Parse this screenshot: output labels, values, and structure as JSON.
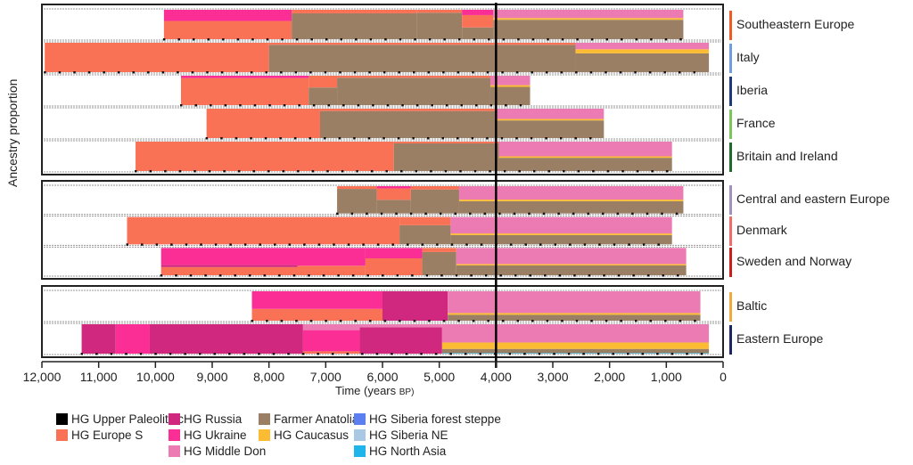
{
  "chart_data": {
    "type": "area",
    "title": "",
    "xlabel": "Time (years",
    "xlabel_suffix": "BP)",
    "ylabel": "Ancestry proportion",
    "xlim": [
      12000,
      0
    ],
    "ylim": [
      0,
      1
    ],
    "xticks": [
      12000,
      11000,
      10000,
      9000,
      8000,
      7000,
      6000,
      5000,
      4000,
      3000,
      2000,
      1000,
      0
    ],
    "xtick_labels": [
      "12,000",
      "11,000",
      "10,000",
      "9,000",
      "8,000",
      "7,000",
      "6,000",
      "5,000",
      "4,000",
      "3,000",
      "2,000",
      "1,000",
      "0"
    ],
    "reference_line": 4000,
    "components": [
      {
        "key": "hg_upper_paleolithic",
        "name": "HG Upper Paleolithic",
        "color": "#000000"
      },
      {
        "key": "hg_europe_s",
        "name": "HG Europe S",
        "color": "#f97256"
      },
      {
        "key": "hg_russia",
        "name": "HG Russia",
        "color": "#d1287f"
      },
      {
        "key": "hg_ukraine",
        "name": "HG Ukraine",
        "color": "#fb2e96"
      },
      {
        "key": "hg_middle_don",
        "name": "HG Middle Don",
        "color": "#ec7bb3"
      },
      {
        "key": "farmer_anatolia",
        "name": "Farmer Anatolia",
        "color": "#9a7f64"
      },
      {
        "key": "hg_caucasus",
        "name": "HG Caucasus",
        "color": "#fbbb33"
      },
      {
        "key": "hg_siberia_forest_steppe",
        "name": "HG Siberia forest steppe",
        "color": "#5b7ff0"
      },
      {
        "key": "hg_siberia_ne",
        "name": "HG Siberia NE",
        "color": "#aac8e4"
      },
      {
        "key": "hg_north_asia",
        "name": "HG North Asia",
        "color": "#20b5ea"
      }
    ],
    "groups": [
      {
        "regions": [
          {
            "name": "Southeastern Europe",
            "color": "#ef5a26",
            "start": 9850,
            "end": 700,
            "segments": [
              {
                "from": 9850,
                "to": 7600,
                "stack": {
                  "hg_europe_s": 0.62,
                  "hg_ukraine": 0.38
                }
              },
              {
                "from": 7600,
                "to": 5400,
                "stack": {
                  "hg_europe_s": 0.12,
                  "farmer_anatolia": 0.88
                }
              },
              {
                "from": 5400,
                "to": 4600,
                "stack": {
                  "farmer_anatolia": 0.9,
                  "hg_europe_s": 0.1
                }
              },
              {
                "from": 4600,
                "to": 4050,
                "stack": {
                  "farmer_anatolia": 0.4,
                  "hg_europe_s": 0.42,
                  "hg_ukraine": 0.18
                }
              },
              {
                "from": 4050,
                "to": 700,
                "stack": {
                  "farmer_anatolia": 0.66,
                  "hg_caucasus": 0.06,
                  "hg_middle_don": 0.28
                }
              }
            ]
          },
          {
            "name": "Italy",
            "color": "#6f9ee0",
            "start": 11950,
            "end": 250,
            "segments": [
              {
                "from": 11950,
                "to": 8000,
                "stack": {
                  "hg_europe_s": 1.0
                }
              },
              {
                "from": 8000,
                "to": 2600,
                "stack": {
                  "farmer_anatolia": 0.93,
                  "hg_europe_s": 0.07
                }
              },
              {
                "from": 2600,
                "to": 250,
                "stack": {
                  "farmer_anatolia": 0.64,
                  "hg_caucasus": 0.14,
                  "hg_middle_don": 0.22
                }
              }
            ]
          },
          {
            "name": "Iberia",
            "color": "#1f3a78",
            "start": 9550,
            "end": 3400,
            "segments": [
              {
                "from": 9550,
                "to": 7300,
                "stack": {
                  "hg_europe_s": 0.92,
                  "hg_ukraine": 0.08
                }
              },
              {
                "from": 7300,
                "to": 6800,
                "stack": {
                  "farmer_anatolia": 0.6,
                  "hg_europe_s": 0.4
                }
              },
              {
                "from": 6800,
                "to": 4100,
                "stack": {
                  "farmer_anatolia": 0.93,
                  "hg_europe_s": 0.07
                }
              },
              {
                "from": 4100,
                "to": 3400,
                "stack": {
                  "farmer_anatolia": 0.62,
                  "hg_caucasus": 0.06,
                  "hg_middle_don": 0.32
                }
              }
            ]
          },
          {
            "name": "France",
            "color": "#7cc45c",
            "start": 9100,
            "end": 2100,
            "segments": [
              {
                "from": 9100,
                "to": 7100,
                "stack": {
                  "hg_europe_s": 1.0
                }
              },
              {
                "from": 7100,
                "to": 4000,
                "stack": {
                  "farmer_anatolia": 0.92,
                  "hg_europe_s": 0.08
                }
              },
              {
                "from": 4000,
                "to": 2100,
                "stack": {
                  "farmer_anatolia": 0.6,
                  "hg_caucasus": 0.05,
                  "hg_middle_don": 0.35
                }
              }
            ]
          },
          {
            "name": "Britain and Ireland",
            "color": "#1f6b2c",
            "start": 10350,
            "end": 900,
            "segments": [
              {
                "from": 10350,
                "to": 5800,
                "stack": {
                  "hg_europe_s": 1.0
                }
              },
              {
                "from": 5800,
                "to": 3950,
                "stack": {
                  "farmer_anatolia": 0.94,
                  "hg_europe_s": 0.06
                }
              },
              {
                "from": 3950,
                "to": 900,
                "stack": {
                  "farmer_anatolia": 0.45,
                  "hg_caucasus": 0.05,
                  "hg_middle_don": 0.5
                }
              }
            ]
          }
        ]
      },
      {
        "regions": [
          {
            "name": "Central and eastern Europe",
            "color": "#a58fbe",
            "start": 6800,
            "end": 700,
            "segments": [
              {
                "from": 6800,
                "to": 6100,
                "stack": {
                  "farmer_anatolia": 0.9,
                  "hg_europe_s": 0.1
                }
              },
              {
                "from": 6100,
                "to": 5500,
                "stack": {
                  "farmer_anatolia": 0.5,
                  "hg_europe_s": 0.42,
                  "hg_ukraine": 0.08
                }
              },
              {
                "from": 5500,
                "to": 4650,
                "stack": {
                  "farmer_anatolia": 0.88,
                  "hg_europe_s": 0.12
                }
              },
              {
                "from": 4650,
                "to": 700,
                "stack": {
                  "farmer_anatolia": 0.45,
                  "hg_caucasus": 0.06,
                  "hg_middle_don": 0.49
                }
              }
            ]
          },
          {
            "name": "Denmark",
            "color": "#f26b6b",
            "start": 10500,
            "end": 900,
            "segments": [
              {
                "from": 10500,
                "to": 5700,
                "stack": {
                  "hg_europe_s": 1.0
                }
              },
              {
                "from": 5700,
                "to": 4800,
                "stack": {
                  "farmer_anatolia": 0.7,
                  "hg_europe_s": 0.3
                }
              },
              {
                "from": 4800,
                "to": 900,
                "stack": {
                  "farmer_anatolia": 0.34,
                  "hg_caucasus": 0.06,
                  "hg_middle_don": 0.6
                }
              }
            ]
          },
          {
            "name": "Sweden and Norway",
            "color": "#c9201c",
            "start": 9900,
            "end": 650,
            "segments": [
              {
                "from": 9900,
                "to": 7500,
                "stack": {
                  "hg_europe_s": 0.3,
                  "hg_ukraine": 0.62,
                  "hg_russia": 0.08
                }
              },
              {
                "from": 7500,
                "to": 6300,
                "stack": {
                  "hg_europe_s": 0.35,
                  "hg_ukraine": 0.65
                }
              },
              {
                "from": 6300,
                "to": 5300,
                "stack": {
                  "hg_europe_s": 0.62,
                  "hg_ukraine": 0.38
                }
              },
              {
                "from": 5300,
                "to": 4700,
                "stack": {
                  "farmer_anatolia": 0.85,
                  "hg_europe_s": 0.15
                }
              },
              {
                "from": 4700,
                "to": 650,
                "stack": {
                  "farmer_anatolia": 0.36,
                  "hg_caucasus": 0.05,
                  "hg_middle_don": 0.59
                }
              }
            ]
          }
        ]
      },
      {
        "regions": [
          {
            "name": "Baltic",
            "color": "#f2a83c",
            "start": 8300,
            "end": 400,
            "segments": [
              {
                "from": 8300,
                "to": 6000,
                "stack": {
                  "hg_europe_s": 0.4,
                  "hg_ukraine": 0.6
                }
              },
              {
                "from": 6000,
                "to": 4850,
                "stack": {
                  "hg_russia": 1.0
                }
              },
              {
                "from": 4850,
                "to": 400,
                "stack": {
                  "farmer_anatolia": 0.2,
                  "hg_caucasus": 0.06,
                  "hg_middle_don": 0.74
                }
              }
            ]
          },
          {
            "name": "Eastern Europe",
            "color": "#1e2565",
            "start": 11300,
            "end": 250,
            "segments": [
              {
                "from": 11300,
                "to": 10700,
                "stack": {
                  "hg_russia": 1.0
                }
              },
              {
                "from": 10700,
                "to": 10100,
                "stack": {
                  "hg_ukraine": 1.0
                }
              },
              {
                "from": 10100,
                "to": 7400,
                "stack": {
                  "hg_russia": 1.0
                }
              },
              {
                "from": 7400,
                "to": 6400,
                "stack": {
                  "hg_europe_s": 0.08,
                  "hg_ukraine": 0.72,
                  "hg_middle_don": 0.2
                }
              },
              {
                "from": 6400,
                "to": 4950,
                "stack": {
                  "hg_middle_don": 0.1,
                  "hg_russia": 0.9
                }
              },
              {
                "from": 4950,
                "to": 250,
                "stack": {
                  "farmer_anatolia": 0.14,
                  "hg_caucasus": 0.22,
                  "hg_north_asia": 0.02,
                  "hg_middle_don": 0.62
                }
              }
            ]
          }
        ]
      }
    ],
    "legend": "bottom",
    "grid": false
  },
  "legend_columns": [
    [
      "HG Upper Paleolithic",
      "HG Europe S"
    ],
    [
      "HG Russia",
      "HG Ukraine",
      "HG Middle Don"
    ],
    [
      "Farmer Anatolia",
      "HG Caucasus"
    ],
    [
      "HG Siberia forest steppe",
      "HG Siberia NE",
      "HG North Asia"
    ]
  ]
}
